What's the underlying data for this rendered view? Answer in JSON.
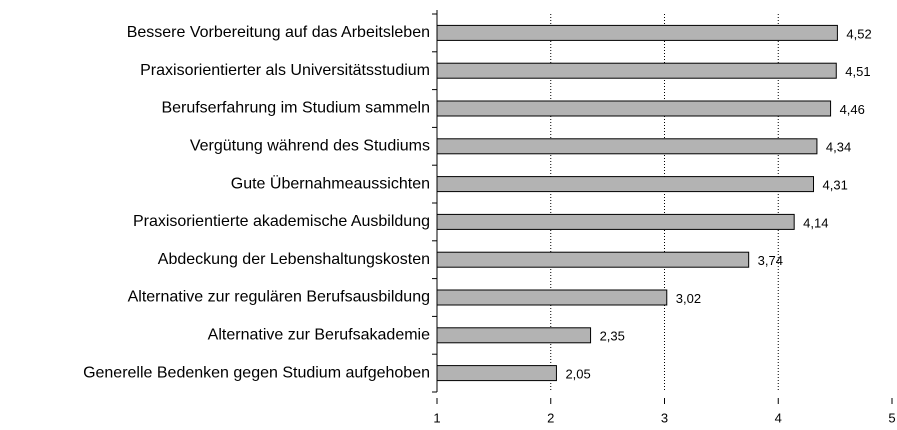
{
  "chart_data": {
    "type": "barh",
    "categories": [
      "Bessere Vorbereitung auf das Arbeitsleben",
      "Praxisorientierter als Universitätsstudium",
      "Berufserfahrung im Studium sammeln",
      "Vergütung während des Studiums",
      "Gute Übernahmeaussichten",
      "Praxisorientierte akademische Ausbildung",
      "Abdeckung der Lebenshaltungskosten",
      "Alternative zur regulären Berufsausbildung",
      "Alternative zur Berufsakademie",
      "Generelle Bedenken gegen Studium aufgehoben"
    ],
    "values": [
      4.52,
      4.51,
      4.46,
      4.34,
      4.31,
      4.14,
      3.74,
      3.02,
      2.35,
      2.05
    ],
    "value_labels": [
      "4,52",
      "4,51",
      "4,46",
      "4,34",
      "4,31",
      "4,14",
      "3,74",
      "3,02",
      "2,35",
      "2,05"
    ],
    "color": "#b3b3b3",
    "xlim": [
      1,
      5
    ],
    "xticks": [
      1,
      2,
      3,
      4,
      5
    ],
    "grid": true
  }
}
